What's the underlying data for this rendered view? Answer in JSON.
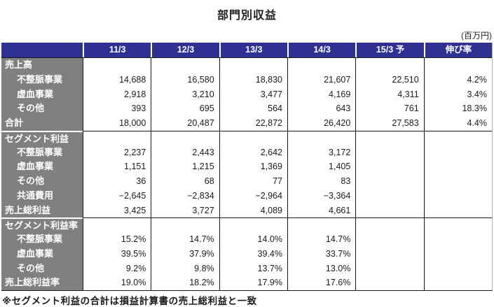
{
  "title": "部門別収益",
  "unit_note": "(百万円)",
  "footnote": "※セグメント利益の合計は損益計算書の売上総利益と一致",
  "colors": {
    "header_bg": "#2e3192",
    "label_bg": "#808080",
    "border": "#1a1a1a",
    "header_text": "#ffffff",
    "body_text": "#1a1a1a"
  },
  "chart_data": {
    "type": "table",
    "columns": [
      "",
      "11/3",
      "12/3",
      "13/3",
      "14/3",
      "15/3 予",
      "伸び率"
    ],
    "sections": [
      {
        "name": "売上高",
        "rows": [
          {
            "label": "売上高",
            "indent": false,
            "values": [
              "",
              "",
              "",
              "",
              "",
              ""
            ]
          },
          {
            "label": "不整脈事業",
            "indent": true,
            "values": [
              "14,688",
              "16,580",
              "18,830",
              "21,607",
              "22,510",
              "4.2%"
            ]
          },
          {
            "label": "虚血事業",
            "indent": true,
            "values": [
              "2,918",
              "3,210",
              "3,477",
              "4,169",
              "4,311",
              "3.4%"
            ]
          },
          {
            "label": "その他",
            "indent": true,
            "values": [
              "393",
              "695",
              "564",
              "643",
              "761",
              "18.3%"
            ]
          },
          {
            "label": "合計",
            "indent": false,
            "values": [
              "18,000",
              "20,487",
              "22,872",
              "26,420",
              "27,583",
              "4.4%"
            ]
          }
        ]
      },
      {
        "name": "セグメント利益",
        "rows": [
          {
            "label": "セグメント利益",
            "indent": false,
            "values": [
              "",
              "",
              "",
              "",
              "",
              ""
            ]
          },
          {
            "label": "不整脈事業",
            "indent": true,
            "values": [
              "2,237",
              "2,443",
              "2,642",
              "3,172",
              "",
              ""
            ]
          },
          {
            "label": "虚血事業",
            "indent": true,
            "values": [
              "1,151",
              "1,215",
              "1,369",
              "1,405",
              "",
              ""
            ]
          },
          {
            "label": "その他",
            "indent": true,
            "values": [
              "36",
              "68",
              "77",
              "83",
              "",
              ""
            ]
          },
          {
            "label": "共通費用",
            "indent": true,
            "values": [
              "−2,645",
              "−2,834",
              "−2,964",
              "−3,364",
              "",
              ""
            ]
          },
          {
            "label": "売上総利益",
            "indent": false,
            "values": [
              "3,425",
              "3,727",
              "4,089",
              "4,661",
              "",
              ""
            ]
          }
        ]
      },
      {
        "name": "セグメント利益率",
        "rows": [
          {
            "label": "セグメント利益率",
            "indent": false,
            "values": [
              "",
              "",
              "",
              "",
              "",
              ""
            ]
          },
          {
            "label": "不整脈事業",
            "indent": true,
            "values": [
              "15.2%",
              "14.7%",
              "14.0%",
              "14.7%",
              "",
              ""
            ]
          },
          {
            "label": "虚血事業",
            "indent": true,
            "values": [
              "39.5%",
              "37.9%",
              "39.4%",
              "33.7%",
              "",
              ""
            ]
          },
          {
            "label": "その他",
            "indent": true,
            "values": [
              "9.2%",
              "9.8%",
              "13.7%",
              "13.0%",
              "",
              ""
            ]
          },
          {
            "label": "売上総利益率",
            "indent": false,
            "values": [
              "19.0%",
              "18.2%",
              "17.9%",
              "17.6%",
              "",
              ""
            ]
          }
        ]
      }
    ]
  }
}
